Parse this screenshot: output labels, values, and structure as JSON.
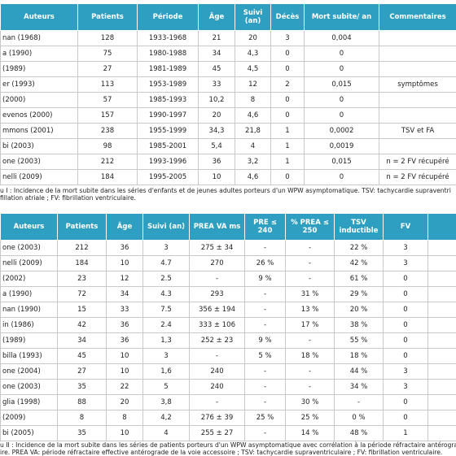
{
  "table1": {
    "headers": [
      "Auteurs",
      "Patients",
      "Période",
      "Âge",
      "Suivi (an)",
      "Décès",
      "Mort subite/ an",
      "Commentaires"
    ],
    "rows": [
      [
        "nan (1968)",
        "128",
        "1933-1968",
        "21",
        "20",
        "3",
        "0,004",
        null
      ],
      [
        "a (1990)",
        "75",
        "1980-1988",
        "34",
        "4,3",
        "0",
        "0",
        null
      ],
      [
        "(1989)",
        "27",
        "1981-1989",
        "45",
        "4,5",
        "0",
        "0",
        null
      ],
      [
        "er (1993)",
        "113",
        "1953-1989",
        "33",
        "12",
        "2",
        "0,015",
        "symptômes"
      ],
      [
        "(2000)",
        "57",
        "1985-1993",
        "10,2",
        "8",
        "0",
        "0",
        null
      ],
      [
        "evenos (2000)",
        "157",
        "1990-1997",
        "20",
        "4,6",
        "0",
        "0",
        null
      ],
      [
        "mmons (2001)",
        "238",
        "1955-1999",
        "34,3",
        "21,8",
        "1",
        "0,0002",
        "TSV et FA"
      ],
      [
        "bi (2003)",
        "98",
        "1985-2001",
        "5,4",
        "4",
        "1",
        "0,0019",
        null
      ],
      [
        "one (2003)",
        "212",
        "1993-1996",
        "36",
        "3,2",
        "1",
        "0,015",
        "n = 2 FV récupéré"
      ],
      [
        "nelli (2009)",
        "184",
        "1995-2005",
        "10",
        "4,6",
        "0",
        "0",
        "n = 2 FV récupéré"
      ]
    ],
    "caption": [
      "u I : Incidence de la mort subite dans les séries d'enfants et de jeunes adultes porteurs d'un WPW asymptomatique. TSV: tachycardie supraventri",
      "fillation atriale ; FV: fibrillation ventriculaire."
    ]
  },
  "table2": {
    "headers": [
      "Auteurs",
      "Patients",
      "Âge",
      "Suivi (an)",
      "PREA VA ms",
      "PRE ≤ 240",
      "% PREA ≤ 250",
      "TSV inductible",
      "FV"
    ],
    "rows": [
      [
        "one (2003)",
        "212",
        "36",
        "3",
        "275 ± 34",
        "-",
        "-",
        "22 %",
        "3"
      ],
      [
        "nelli (2009)",
        "184",
        "10",
        "4.7",
        "270",
        "26 %",
        "-",
        "42 %",
        "3"
      ],
      [
        "(2002)",
        "23",
        "12",
        "2.5",
        "-",
        "9 %",
        "-",
        "61 %",
        "0"
      ],
      [
        "a (1990)",
        "72",
        "34",
        "4.3",
        "293",
        "-",
        "31 %",
        "29 %",
        "0"
      ],
      [
        "nan (1990)",
        "15",
        "33",
        "7.5",
        "356 ± 194",
        "-",
        "13 %",
        "20 %",
        "0"
      ],
      [
        "in (1986)",
        "42",
        "36",
        "2.4",
        "333 ± 106",
        "-",
        "17 %",
        "38 %",
        "0"
      ],
      [
        "(1989)",
        "34",
        "36",
        "1,3",
        "252 ± 23",
        "9 %",
        "-",
        "55 %",
        "0"
      ],
      [
        "billa (1993)",
        "45",
        "10",
        "3",
        "-",
        "5 %",
        "18 %",
        "18 %",
        "0"
      ],
      [
        "one (2004)",
        "27",
        "10",
        "1,6",
        "240",
        "-",
        "-",
        "44 %",
        "3"
      ],
      [
        "one (2003)",
        "35",
        "22",
        "5",
        "240",
        "-",
        "-",
        "34 %",
        "3"
      ],
      [
        "glia (1998)",
        "88",
        "20",
        "3,8",
        "-",
        "-",
        "30 %",
        "-",
        "0"
      ],
      [
        "(2009)",
        "8",
        "8",
        "4,2",
        "276 ± 39",
        "25 %",
        "25 %",
        "0 %",
        "0"
      ],
      [
        "bi (2005)",
        "35",
        "10",
        "4",
        "255 ± 27",
        "-",
        "14 %",
        "48 %",
        "1"
      ]
    ],
    "caption": [
      "u II : Incidence de la mort subite dans les séries de patients porteurs d'un WPW asymptomatique avec corrélation à la période réfractaire antérograde d",
      "ire. PREA VA: période réfractaire effective antérograde de la voie accessoire ; TSV: tachycardie supraventriculaire ; FV: fibrillation ventriculaire."
    ]
  }
}
